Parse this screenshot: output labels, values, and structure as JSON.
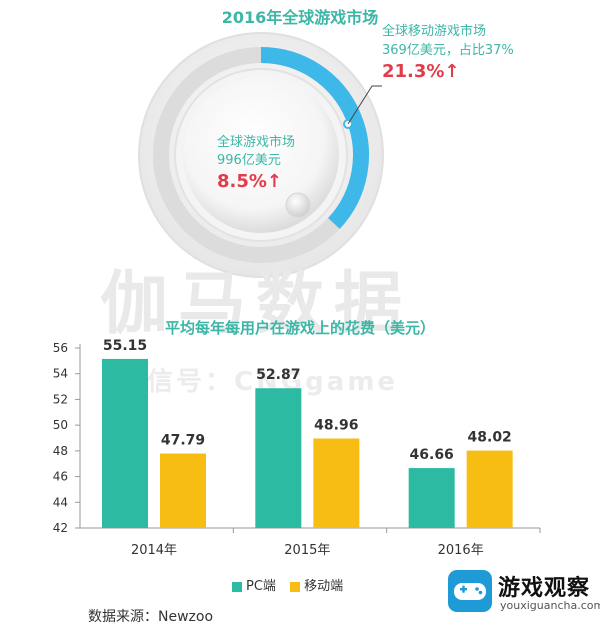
{
  "donut": {
    "title": "2016年全球游戏市场",
    "mobile": {
      "label": "全球移动游戏市场",
      "detail": "369亿美元，占比37%",
      "growth": "21.3%↑",
      "share_percent": 37
    },
    "total": {
      "label": "全球游戏市场",
      "amount": "996亿美元",
      "growth": "8.5%↑"
    },
    "colors": {
      "mobile_arc": "#3db8e8",
      "track": "#dcdcdc"
    }
  },
  "watermark": {
    "main": "伽马数据",
    "sub": "微信号：CNGgame"
  },
  "chart_data": {
    "type": "bar",
    "title": "平均每年每用户在游戏上的花费（美元）",
    "categories": [
      "2014年",
      "2015年",
      "2016年"
    ],
    "series": [
      {
        "name": "PC端",
        "values": [
          55.15,
          52.87,
          46.66
        ],
        "labels": [
          "55.15",
          "52.87",
          "46.66"
        ],
        "color": "#2cbba2"
      },
      {
        "name": "移动端",
        "values": [
          47.79,
          48.96,
          48.02
        ],
        "labels": [
          "47.79",
          "48.96",
          "48.02"
        ],
        "color": "#f7bd12"
      }
    ],
    "ylim": [
      42,
      56
    ],
    "yticks": [
      "42",
      "44",
      "46",
      "48",
      "50",
      "52",
      "54",
      "56"
    ],
    "xlabel": "",
    "ylabel": "",
    "grid": false,
    "legend_position": "bottom"
  },
  "source": "数据来源：Newzoo",
  "logo": {
    "name": "游戏观察",
    "url": "youxiguancha.com",
    "icon": "gamepad-icon"
  }
}
